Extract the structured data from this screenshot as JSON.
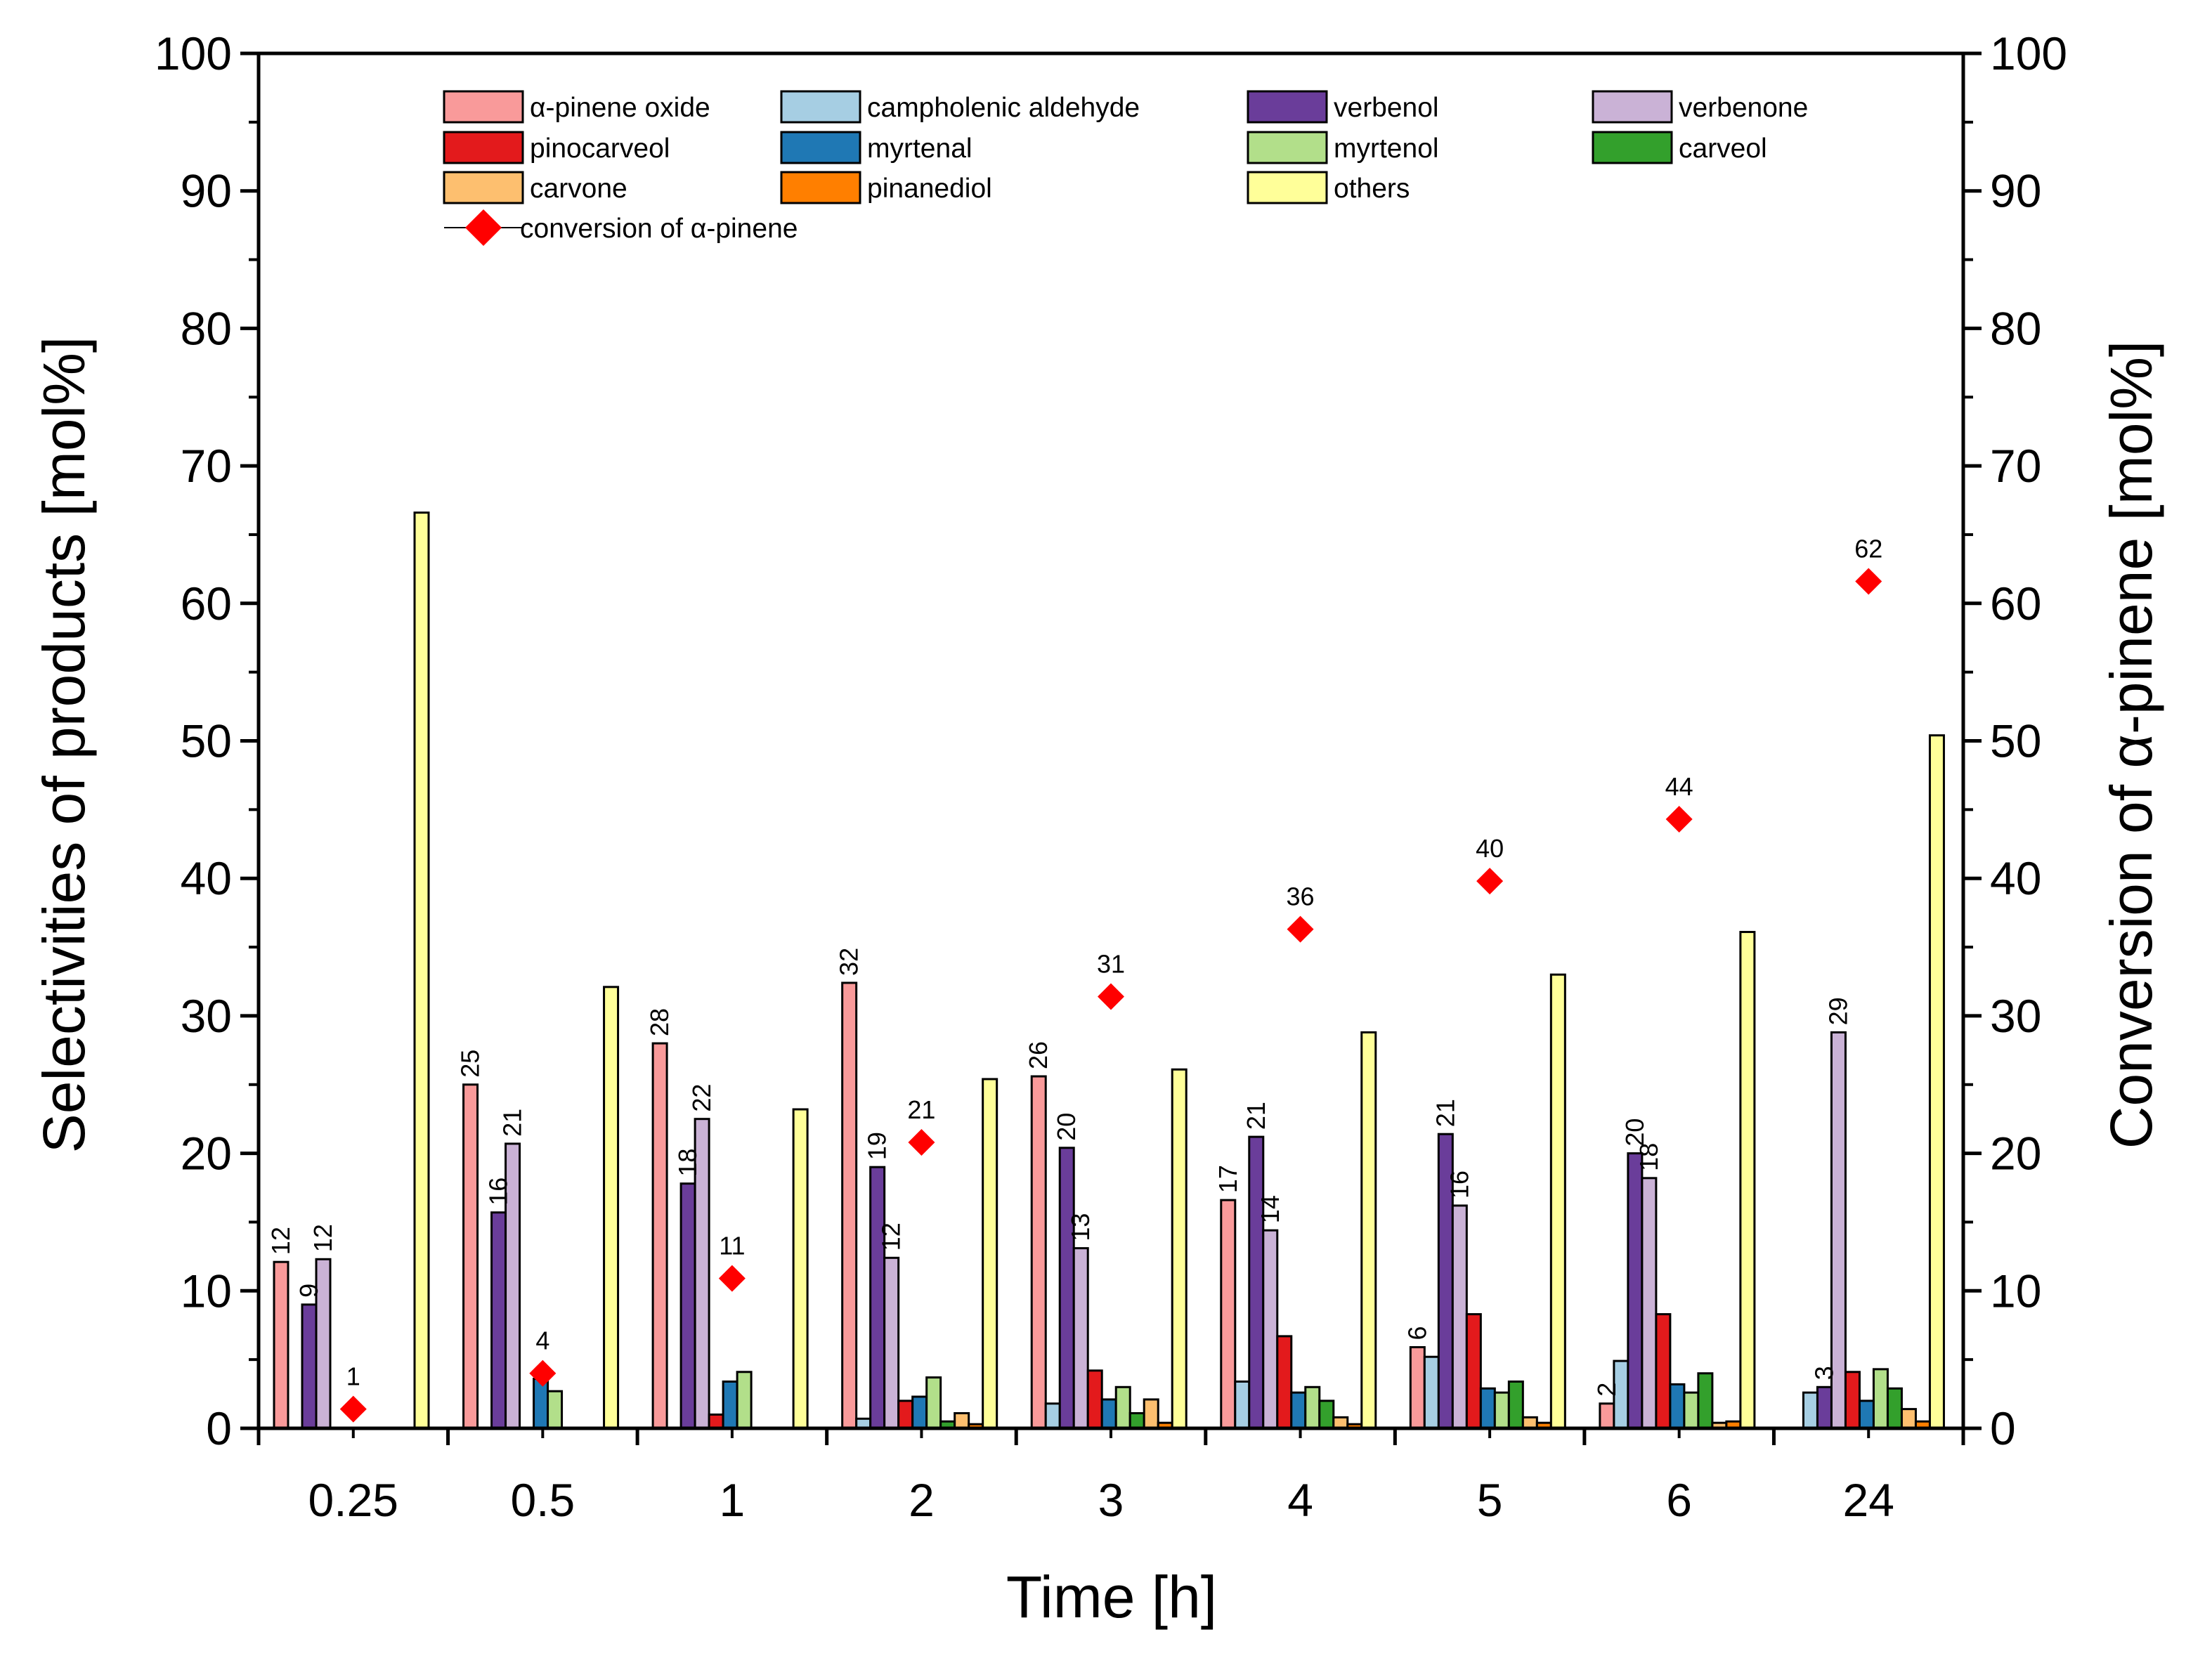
{
  "chart_data": {
    "type": "bar",
    "xlabel": "Time [h]",
    "ylabel": "Selectivities of products [mol%]",
    "y2label": "Conversion of α-pinene [mol%]",
    "ylim": [
      0,
      100
    ],
    "y2lim": [
      0,
      100
    ],
    "yticks": [
      0,
      10,
      20,
      30,
      40,
      50,
      60,
      70,
      80,
      90,
      100
    ],
    "categories": [
      "0.25",
      "0.5",
      "1",
      "2",
      "3",
      "4",
      "5",
      "6",
      "24"
    ],
    "legend_position": "top",
    "series": [
      {
        "name": "α-pinene oxide",
        "color": "#F99A9A",
        "values": [
          12.1,
          25.0,
          28.0,
          32.4,
          25.6,
          16.6,
          5.9,
          1.8,
          0
        ]
      },
      {
        "name": "campholenic aldehyde",
        "color": "#A6CEE3",
        "values": [
          0,
          0,
          0,
          0.7,
          1.8,
          3.4,
          5.2,
          4.9,
          2.6
        ]
      },
      {
        "name": "verbenol",
        "color": "#6A3D9A",
        "values": [
          9.0,
          15.7,
          17.8,
          19.0,
          20.4,
          21.2,
          21.4,
          20.0,
          3.0
        ]
      },
      {
        "name": "verbenone",
        "color": "#CAB2D6",
        "values": [
          12.3,
          20.7,
          22.5,
          12.4,
          13.1,
          14.4,
          16.2,
          18.2,
          28.8
        ]
      },
      {
        "name": "pinocarveol",
        "color": "#E31A1C",
        "values": [
          0,
          0,
          1.0,
          2.0,
          4.2,
          6.7,
          8.3,
          8.3,
          4.1
        ]
      },
      {
        "name": "myrtenal",
        "color": "#1F78B4",
        "values": [
          0,
          3.6,
          3.4,
          2.3,
          2.1,
          2.6,
          2.9,
          3.2,
          2.0
        ]
      },
      {
        "name": "myrtenol",
        "color": "#B2DF8A",
        "values": [
          0,
          2.7,
          4.1,
          3.7,
          3.0,
          3.0,
          2.6,
          2.6,
          4.3
        ]
      },
      {
        "name": "carveol",
        "color": "#33A02C",
        "values": [
          0,
          0,
          0,
          0.5,
          1.1,
          2.0,
          3.4,
          4.0,
          2.9
        ]
      },
      {
        "name": "carvone",
        "color": "#FDBF6F",
        "values": [
          0,
          0,
          0,
          1.1,
          2.1,
          0.8,
          0.8,
          0.4,
          1.4
        ]
      },
      {
        "name": "pinanediol",
        "color": "#FF7F00",
        "values": [
          0,
          0,
          0,
          0.3,
          0.4,
          0.3,
          0.4,
          0.5,
          0.5
        ]
      },
      {
        "name": "others",
        "color": "#FFFF99",
        "values": [
          66.6,
          32.1,
          23.2,
          25.4,
          26.1,
          28.8,
          33.0,
          36.1,
          50.4
        ]
      }
    ],
    "bar_labels": [
      {
        "category": "0.25",
        "series": "α-pinene oxide",
        "text": "12"
      },
      {
        "category": "0.25",
        "series": "verbenol",
        "text": "9"
      },
      {
        "category": "0.25",
        "series": "verbenone",
        "text": "12"
      },
      {
        "category": "0.5",
        "series": "α-pinene oxide",
        "text": "25"
      },
      {
        "category": "0.5",
        "series": "verbenol",
        "text": "16"
      },
      {
        "category": "0.5",
        "series": "verbenone",
        "text": "21"
      },
      {
        "category": "1",
        "series": "α-pinene oxide",
        "text": "28"
      },
      {
        "category": "1",
        "series": "verbenol",
        "text": "18"
      },
      {
        "category": "1",
        "series": "verbenone",
        "text": "22"
      },
      {
        "category": "2",
        "series": "α-pinene oxide",
        "text": "32"
      },
      {
        "category": "2",
        "series": "verbenol",
        "text": "19"
      },
      {
        "category": "2",
        "series": "verbenone",
        "text": "12"
      },
      {
        "category": "3",
        "series": "α-pinene oxide",
        "text": "26"
      },
      {
        "category": "3",
        "series": "verbenol",
        "text": "20"
      },
      {
        "category": "3",
        "series": "verbenone",
        "text": "13"
      },
      {
        "category": "4",
        "series": "α-pinene oxide",
        "text": "17"
      },
      {
        "category": "4",
        "series": "verbenol",
        "text": "21"
      },
      {
        "category": "4",
        "series": "verbenone",
        "text": "14"
      },
      {
        "category": "5",
        "series": "α-pinene oxide",
        "text": "6"
      },
      {
        "category": "5",
        "series": "verbenol",
        "text": "21"
      },
      {
        "category": "5",
        "series": "verbenone",
        "text": "16"
      },
      {
        "category": "6",
        "series": "α-pinene oxide",
        "text": "2"
      },
      {
        "category": "6",
        "series": "verbenol",
        "text": "20"
      },
      {
        "category": "6",
        "series": "verbenone",
        "text": "18"
      },
      {
        "category": "24",
        "series": "verbenol",
        "text": "3"
      },
      {
        "category": "24",
        "series": "verbenone",
        "text": "29"
      }
    ],
    "conversion": {
      "name": "conversion of α-pinene",
      "color": "#FF0000",
      "values": [
        1.4,
        4.0,
        10.9,
        20.8,
        31.4,
        36.3,
        39.8,
        44.3,
        61.6
      ],
      "labels": [
        "1",
        "4",
        "11",
        "21",
        "31",
        "36",
        "40",
        "44",
        "62"
      ]
    }
  }
}
